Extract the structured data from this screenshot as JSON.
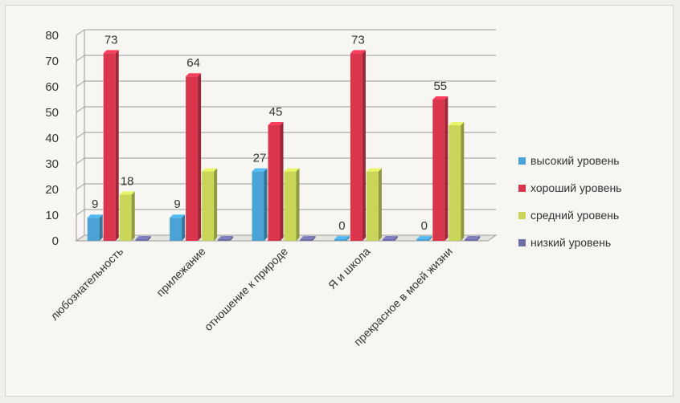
{
  "chart_data": {
    "type": "bar",
    "categories": [
      "любознательность",
      "прилежание",
      "отношение к природе",
      "Я и школа",
      "прекрасное в моей жизни"
    ],
    "series": [
      {
        "name": "высокий уровень",
        "values": [
          9,
          9,
          27,
          0,
          0
        ],
        "color": "#4aa3d4"
      },
      {
        "name": "хороший уровень",
        "values": [
          73,
          64,
          45,
          73,
          55
        ],
        "color": "#d9364e"
      },
      {
        "name": "средний уровень",
        "values": [
          18,
          27,
          27,
          27,
          45
        ],
        "color": "#c9d65a"
      },
      {
        "name": "низкий уровень",
        "values": [
          0,
          0,
          0,
          0,
          0
        ],
        "color": "#6f6fa8"
      }
    ],
    "data_labels": [
      {
        "series": 0,
        "category": 0,
        "text": "9"
      },
      {
        "series": 1,
        "category": 0,
        "text": "73"
      },
      {
        "series": 2,
        "category": 0,
        "text": "18"
      },
      {
        "series": 0,
        "category": 1,
        "text": "9"
      },
      {
        "series": 1,
        "category": 1,
        "text": "64"
      },
      {
        "series": 0,
        "category": 2,
        "text": "27"
      },
      {
        "series": 1,
        "category": 2,
        "text": "45"
      },
      {
        "series": 0,
        "category": 3,
        "text": "0"
      },
      {
        "series": 1,
        "category": 3,
        "text": "73"
      },
      {
        "series": 0,
        "category": 4,
        "text": "0"
      },
      {
        "series": 1,
        "category": 4,
        "text": "55"
      }
    ],
    "y_ticks": [
      "0",
      "10",
      "20",
      "30",
      "40",
      "50",
      "60",
      "70",
      "80"
    ],
    "ylim": [
      0,
      80
    ],
    "grid": true,
    "legend_position": "right"
  }
}
